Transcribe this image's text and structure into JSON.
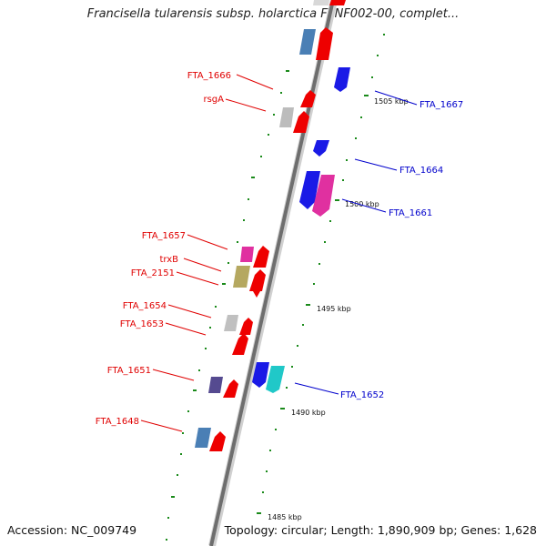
{
  "title": "Francisella tularensis subsp. holarctica FTNF002-00, complet...",
  "footer": {
    "accession": "Accession: NC_009749",
    "stats": "Topology: circular; Length: 1,890,909 bp; Genes: 1,628"
  },
  "colors": {
    "forward_label": "#e00000",
    "reverse_label": "#0000cc",
    "backbone": "#7a7a7a",
    "tick": "#1a8a1a"
  },
  "scale_labels": [
    "1505 kbp",
    "1500 kbp",
    "1495 kbp",
    "1490 kbp",
    "1485 kbp"
  ],
  "gene_labels": {
    "left": [
      "FTA_1666",
      "rsgA",
      "FTA_1657",
      "trxB",
      "FTA_2151",
      "FTA_1654",
      "FTA_1653",
      "FTA_1651",
      "FTA_1648"
    ],
    "right": [
      "FTA_1667",
      "FTA_1664",
      "FTA_1661",
      "FTA_1652"
    ]
  }
}
